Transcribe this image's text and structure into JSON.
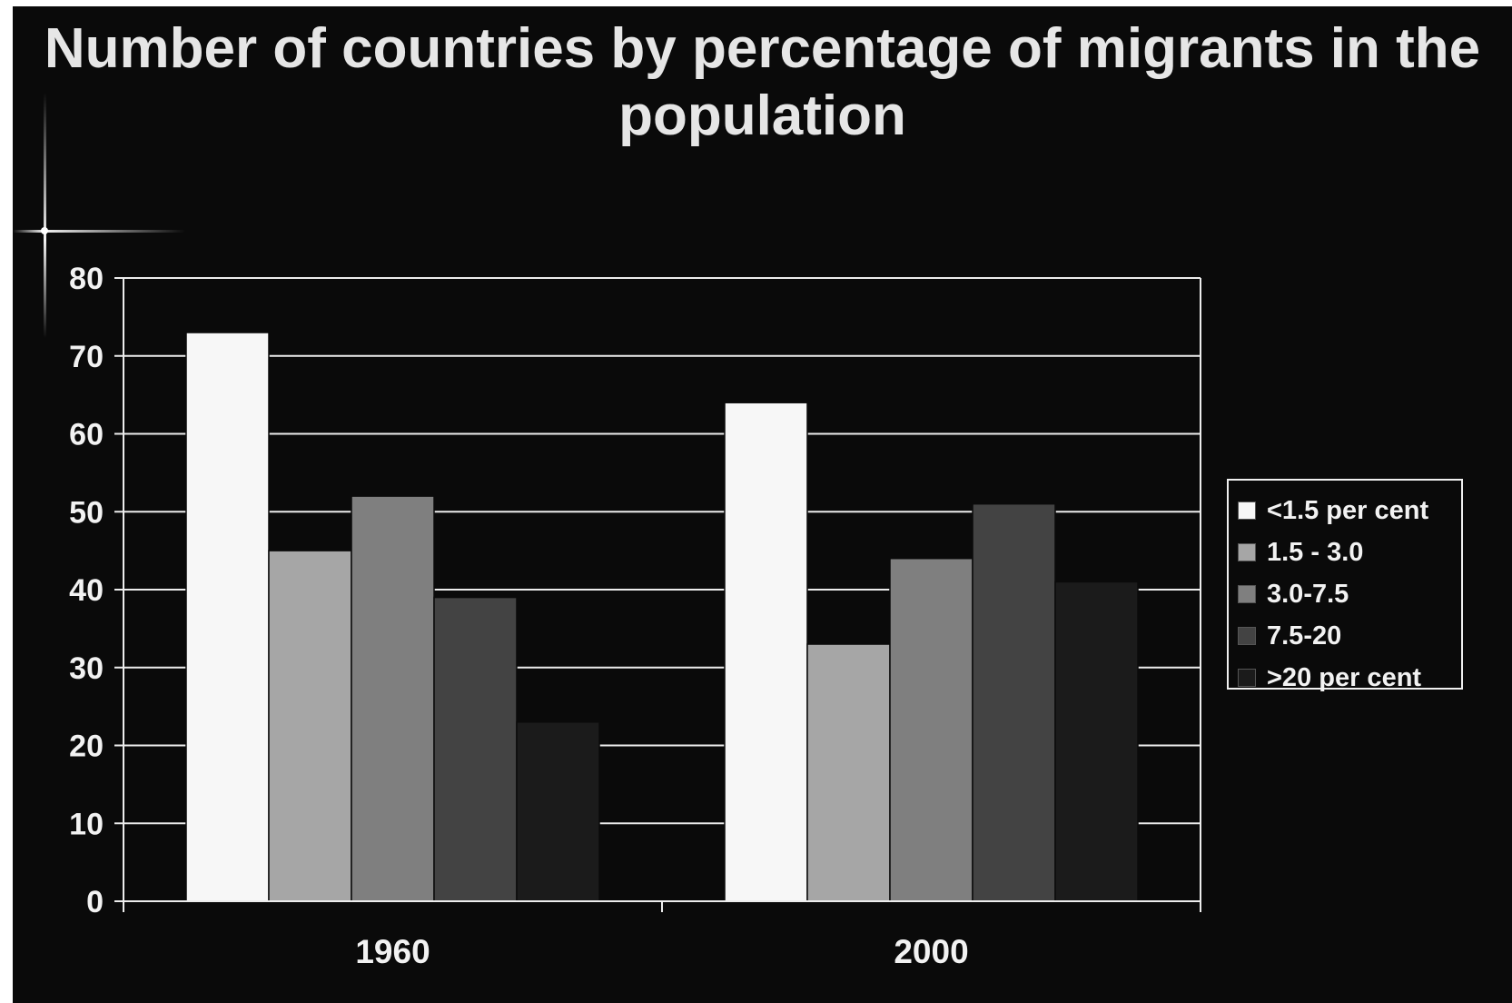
{
  "chart_data": {
    "type": "bar",
    "title": "Number of countries by percentage of migrants in the population",
    "categories": [
      "1960",
      "2000"
    ],
    "series": [
      {
        "name": "<1.5 per cent",
        "values": [
          73,
          64
        ],
        "color": "#f7f7f7"
      },
      {
        "name": "1.5 - 3.0",
        "values": [
          45,
          33
        ],
        "color": "#a6a6a6"
      },
      {
        "name": "3.0-7.5",
        "values": [
          52,
          44
        ],
        "color": "#7f7f7f"
      },
      {
        "name": "7.5-20",
        "values": [
          39,
          51
        ],
        "color": "#434343"
      },
      {
        "name": ">20 per cent",
        "values": [
          23,
          41
        ],
        "color": "#1b1b1b"
      }
    ],
    "ylim": [
      0,
      80
    ],
    "yticks": [
      0,
      10,
      20,
      30,
      40,
      50,
      60,
      70,
      80
    ],
    "grid": true,
    "legend": "right"
  }
}
